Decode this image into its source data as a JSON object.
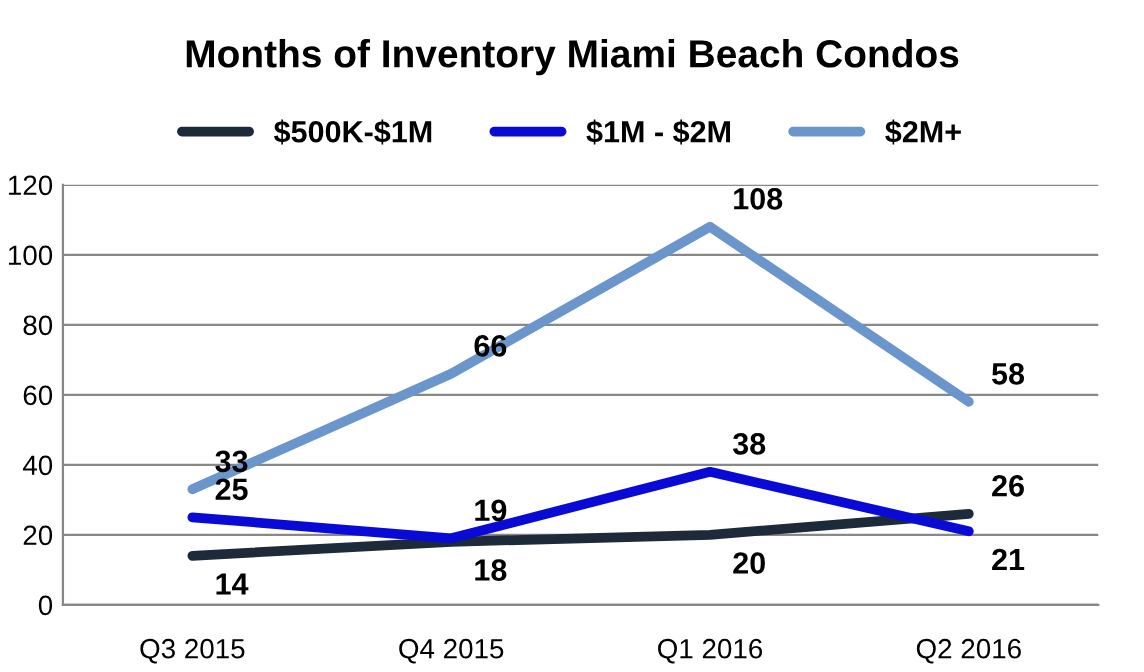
{
  "chart_data": {
    "type": "line",
    "title": "Months of Inventory Miami Beach Condos",
    "categories": [
      "Q3 2015",
      "Q4 2015",
      "Q1 2016",
      "Q2 2016"
    ],
    "series": [
      {
        "name": "$500K-$1M",
        "color": "#1c2a3a",
        "values": [
          14,
          18,
          20,
          26
        ]
      },
      {
        "name": "$1M - $2M",
        "color": "#0a0ad6",
        "values": [
          25,
          19,
          38,
          21
        ]
      },
      {
        "name": "$2M+",
        "color": "#6a96cc",
        "values": [
          33,
          66,
          108,
          58
        ]
      }
    ],
    "ylim": [
      0,
      120
    ],
    "yticks": [
      0,
      20,
      40,
      60,
      80,
      100,
      120
    ],
    "grid": "y",
    "legend": "top",
    "data_labels": true
  }
}
